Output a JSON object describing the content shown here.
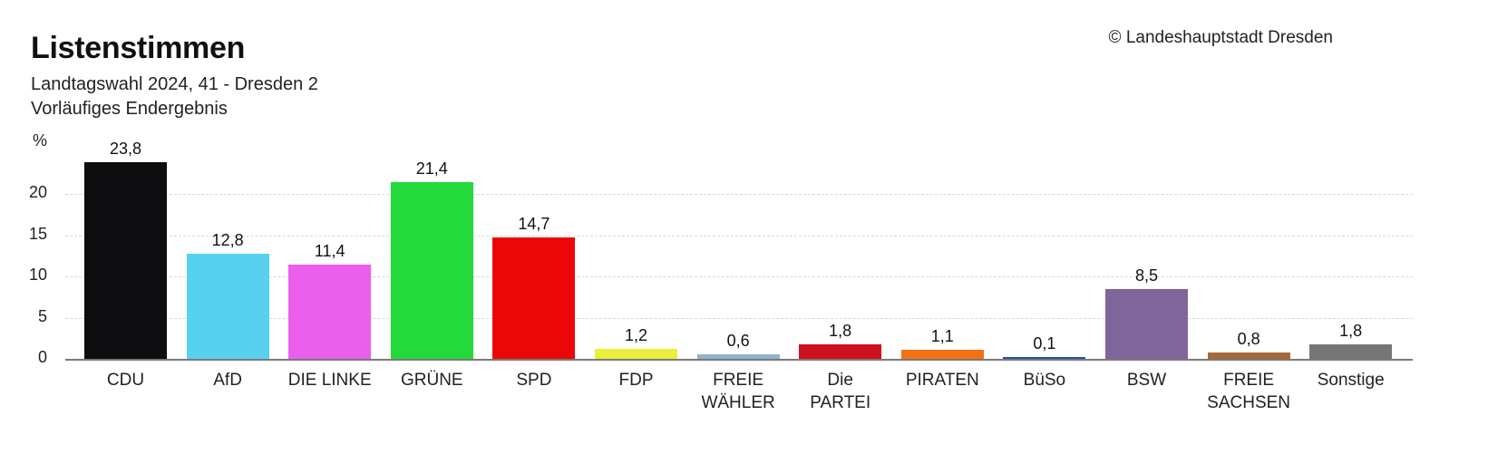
{
  "header": {
    "title": "Listenstimmen",
    "subtitle_line1": "Landtagswahl 2024, 41 - Dresden 2",
    "subtitle_line2": "Vorläufiges Endergebnis",
    "copyright": "© Landeshauptstadt Dresden"
  },
  "axis": {
    "unit": "%",
    "ticks": [
      "0",
      "5",
      "10",
      "15",
      "20"
    ]
  },
  "chart_data": {
    "type": "bar",
    "title": "Listenstimmen",
    "subtitle": "Landtagswahl 2024, 41 - Dresden 2 — Vorläufiges Endergebnis",
    "xlabel": "",
    "ylabel": "%",
    "ylim": [
      0,
      25
    ],
    "yticks": [
      0,
      5,
      10,
      15,
      20
    ],
    "grid": true,
    "legend": "none",
    "categories": [
      "CDU",
      "AfD",
      "DIE LINKE",
      "GRÜNE",
      "SPD",
      "FDP",
      "FREIE WÄHLER",
      "Die PARTEI",
      "PIRATEN",
      "BüSo",
      "BSW",
      "FREIE SACHSEN",
      "Sonstige"
    ],
    "values": [
      23.8,
      12.8,
      11.4,
      21.4,
      14.7,
      1.2,
      0.6,
      1.8,
      1.1,
      0.1,
      8.5,
      0.8,
      1.8
    ],
    "value_labels": [
      "23,8",
      "12,8",
      "11,4",
      "21,4",
      "14,7",
      "1,2",
      "0,6",
      "1,8",
      "1,1",
      "0,1",
      "8,5",
      "0,8",
      "1,8"
    ],
    "colors": [
      "#0e0d10",
      "#58d1ef",
      "#ec5fec",
      "#24d93a",
      "#ec0707",
      "#ebee3c",
      "#8fb4cb",
      "#cc101f",
      "#f47015",
      "#2a4ea8",
      "#80659a",
      "#a4683a",
      "#767676"
    ]
  },
  "bars": [
    {
      "label_1": "CDU",
      "label_2": "",
      "value": "23,8"
    },
    {
      "label_1": "AfD",
      "label_2": "",
      "value": "12,8"
    },
    {
      "label_1": "DIE LINKE",
      "label_2": "",
      "value": "11,4"
    },
    {
      "label_1": "GRÜNE",
      "label_2": "",
      "value": "21,4"
    },
    {
      "label_1": "SPD",
      "label_2": "",
      "value": "14,7"
    },
    {
      "label_1": "FDP",
      "label_2": "",
      "value": "1,2"
    },
    {
      "label_1": "FREIE",
      "label_2": "WÄHLER",
      "value": "0,6"
    },
    {
      "label_1": "Die",
      "label_2": "PARTEI",
      "value": "1,8"
    },
    {
      "label_1": "PIRATEN",
      "label_2": "",
      "value": "1,1"
    },
    {
      "label_1": "BüSo",
      "label_2": "",
      "value": "0,1"
    },
    {
      "label_1": "BSW",
      "label_2": "",
      "value": "8,5"
    },
    {
      "label_1": "FREIE",
      "label_2": "SACHSEN",
      "value": "0,8"
    },
    {
      "label_1": "Sonstige",
      "label_2": "",
      "value": "1,8"
    }
  ]
}
